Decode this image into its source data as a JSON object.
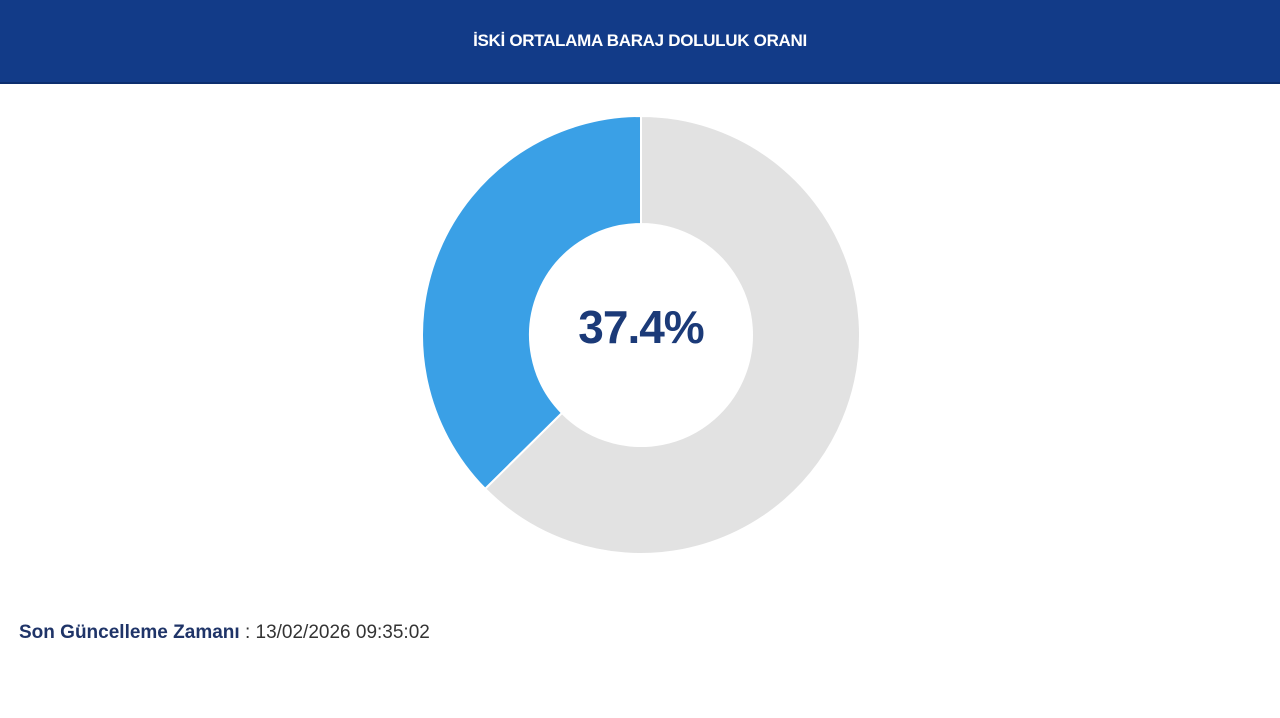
{
  "header": {
    "title": "İSKİ ORTALAMA BARAJ DOLULUK ORANI"
  },
  "chart_data": {
    "type": "pie",
    "variant": "donut",
    "center_label": "37.4%",
    "slices": [
      {
        "label": "filled",
        "value": 37.4,
        "color": "#3aa0e6"
      },
      {
        "label": "empty",
        "value": 62.6,
        "color": "#e2e2e2"
      }
    ]
  },
  "footer": {
    "label": "Son Güncelleme Zamanı",
    "separator": ":",
    "timestamp": "13/02/2026 09:35:02"
  },
  "colors": {
    "header_bg": "#123b88",
    "accent": "#3aa0e6",
    "text_dark": "#1b3a78"
  }
}
